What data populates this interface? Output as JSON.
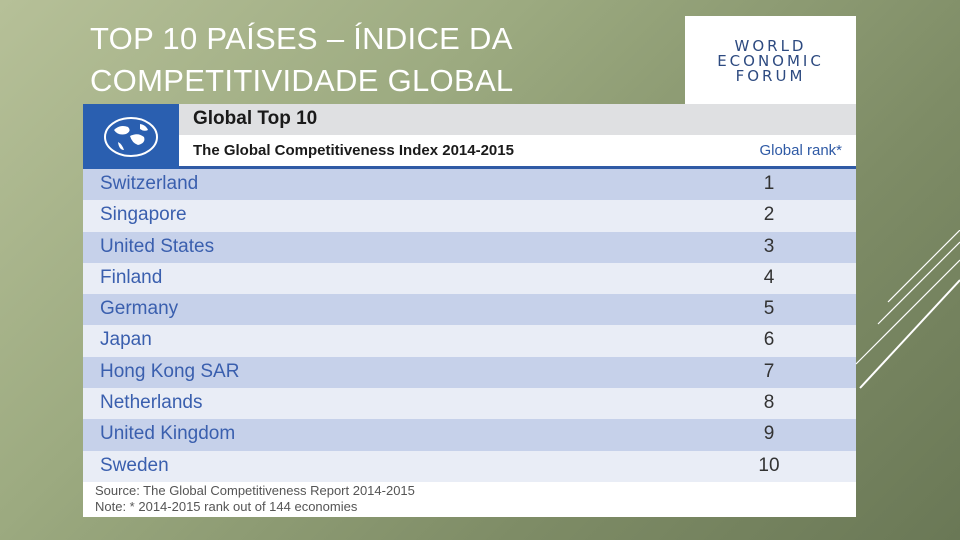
{
  "title": {
    "line1": "TOP 10 PAÍSES – ÍNDICE DA",
    "line2": "COMPETITIVIDADE GLOBAL"
  },
  "logo": {
    "line1": "WORLD",
    "line2": "ECONOMIC",
    "line3": "FORUM"
  },
  "table": {
    "heading": "Global Top 10",
    "subheading": "The Global Competitiveness Index 2014-2015",
    "rank_header": "Global rank*",
    "rows": [
      {
        "country": "Switzerland",
        "rank": "1"
      },
      {
        "country": "Singapore",
        "rank": "2"
      },
      {
        "country": "United States",
        "rank": "3"
      },
      {
        "country": "Finland",
        "rank": "4"
      },
      {
        "country": "Germany",
        "rank": "5"
      },
      {
        "country": "Japan",
        "rank": "6"
      },
      {
        "country": "Hong Kong SAR",
        "rank": "7"
      },
      {
        "country": "Netherlands",
        "rank": "8"
      },
      {
        "country": "United Kingdom",
        "rank": "9"
      },
      {
        "country": "Sweden",
        "rank": "10"
      }
    ],
    "source": "Source: The Global Competitiveness Report 2014-2015",
    "note": "Note: * 2014-2015 rank out of 144 economies"
  },
  "colors": {
    "accent_blue": "#2f5aa5",
    "row_dark": "#c6d1ea",
    "row_light": "#e9edf6"
  }
}
